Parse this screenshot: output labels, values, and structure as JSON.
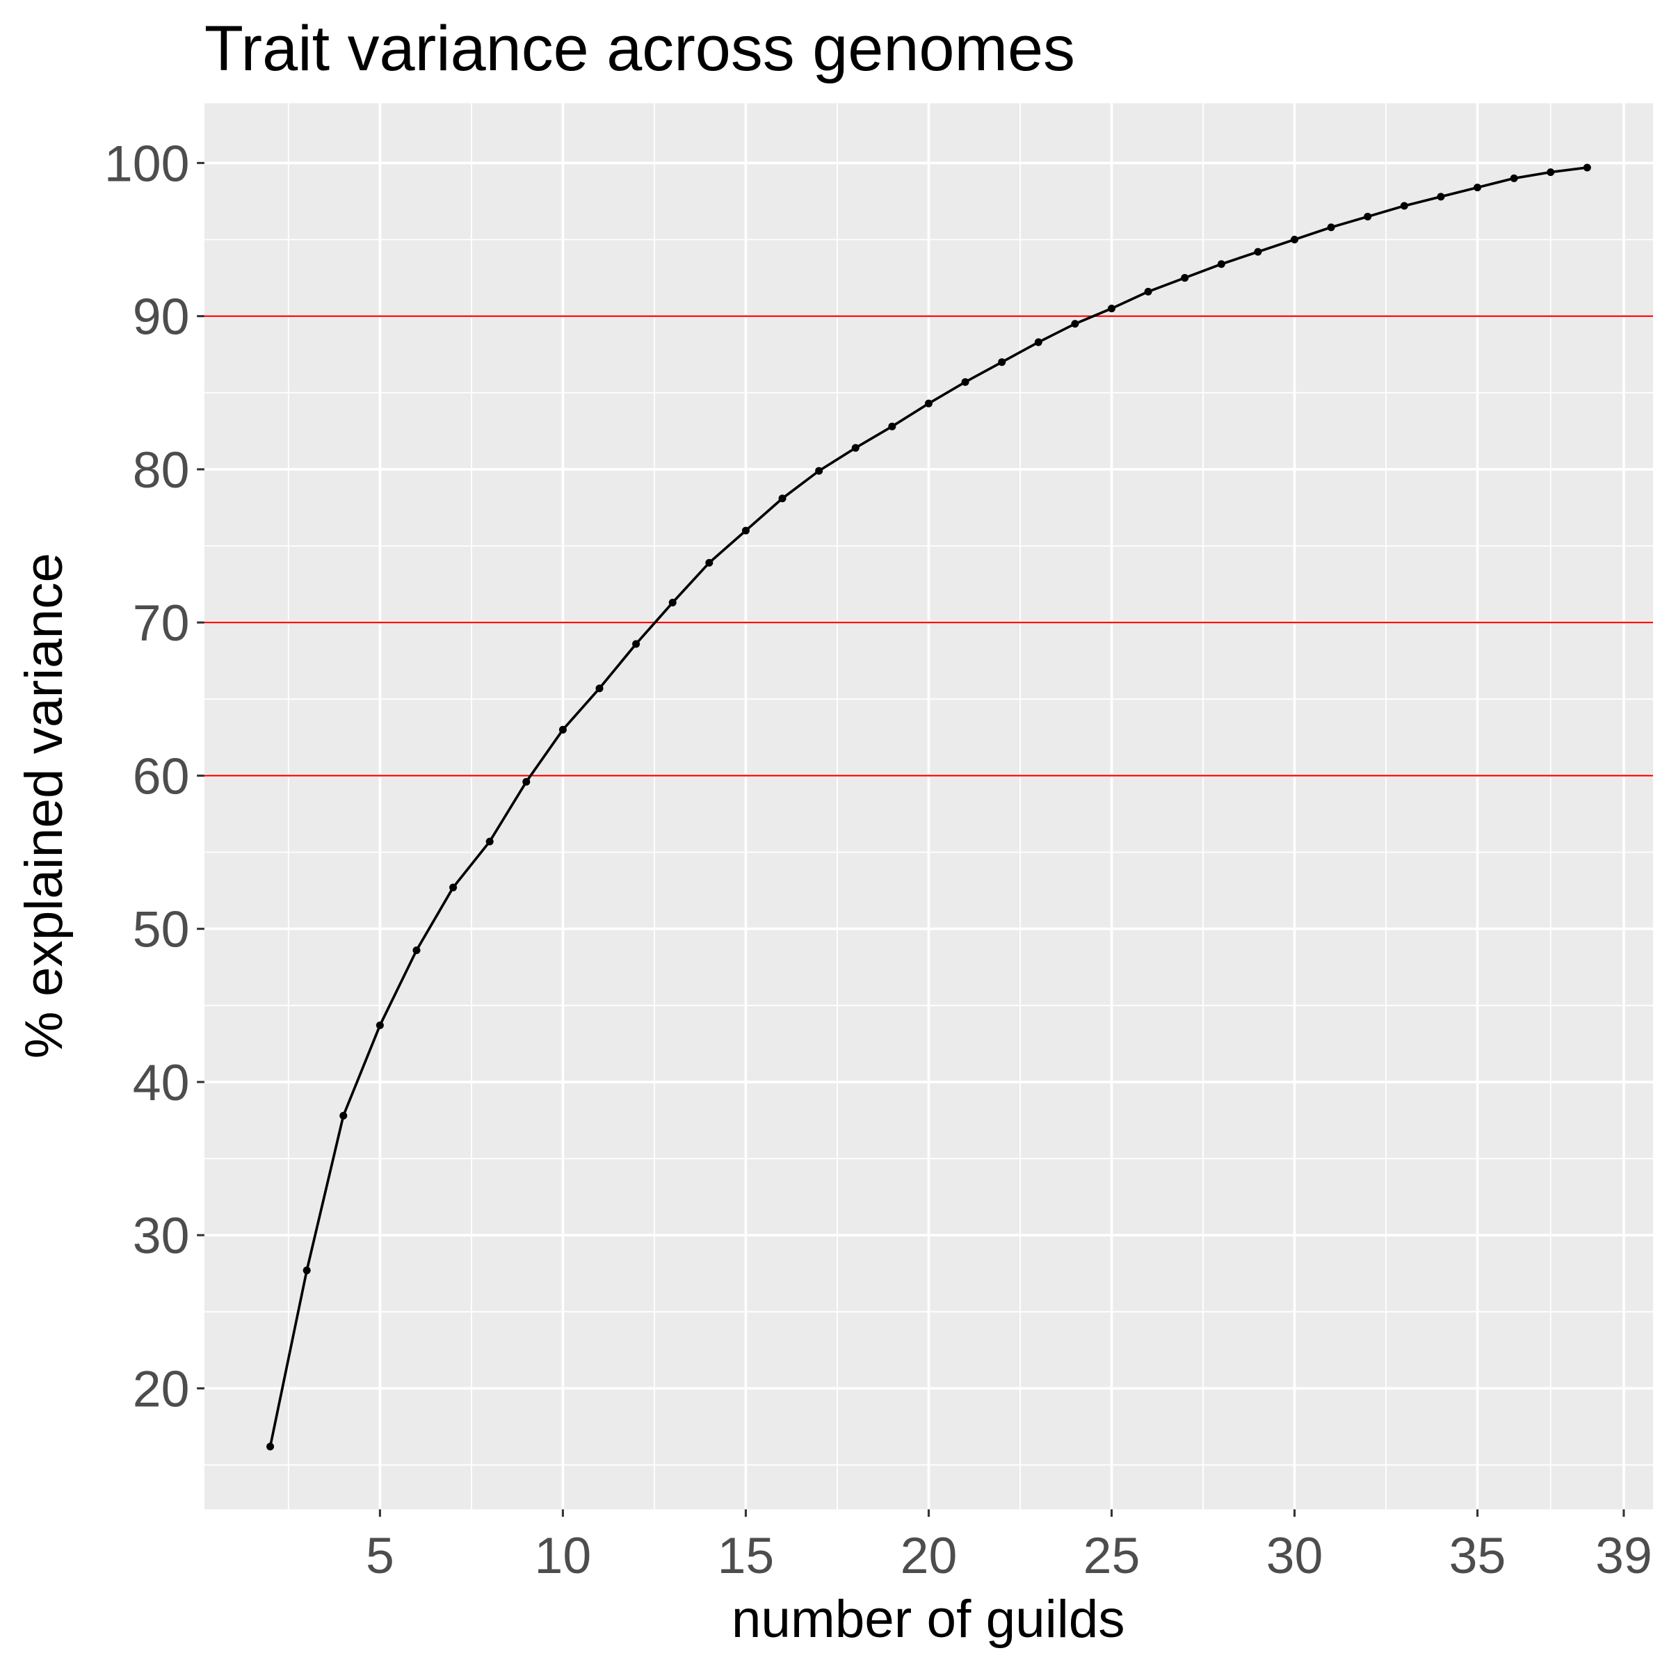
{
  "chart_data": {
    "type": "line",
    "title": "Trait variance across genomes",
    "x_label": "number of guilds",
    "y_label": "% explained variance",
    "x": [
      2,
      3,
      4,
      5,
      6,
      7,
      8,
      9,
      10,
      11,
      12,
      13,
      14,
      15,
      16,
      17,
      18,
      19,
      20,
      21,
      22,
      23,
      24,
      25,
      26,
      27,
      28,
      29,
      30,
      31,
      32,
      33,
      34,
      35,
      36,
      37,
      38
    ],
    "series": [
      {
        "name": "explained variance",
        "color": "#000000",
        "values": [
          16.2,
          27.7,
          37.8,
          43.7,
          48.6,
          52.7,
          55.7,
          59.6,
          63.0,
          65.7,
          68.6,
          71.3,
          73.9,
          76.0,
          78.1,
          79.9,
          81.4,
          82.8,
          84.3,
          85.7,
          87.0,
          88.3,
          89.5,
          90.5,
          91.6,
          92.5,
          93.4,
          94.2,
          95.0,
          95.8,
          96.5,
          97.2,
          97.8,
          98.4,
          99.0,
          99.4,
          99.7
        ]
      }
    ],
    "xlim": [
      0.2,
      39.8
    ],
    "ylim": [
      12.1,
      103.9
    ],
    "xticks": [
      5,
      10,
      15,
      20,
      25,
      30,
      35,
      39
    ],
    "yticks": [
      20,
      30,
      40,
      50,
      60,
      70,
      80,
      90,
      100
    ],
    "hlines": [
      60,
      70,
      90
    ],
    "hline_color": "#ff0000",
    "grid": true,
    "panel_color": "#ebebeb"
  }
}
